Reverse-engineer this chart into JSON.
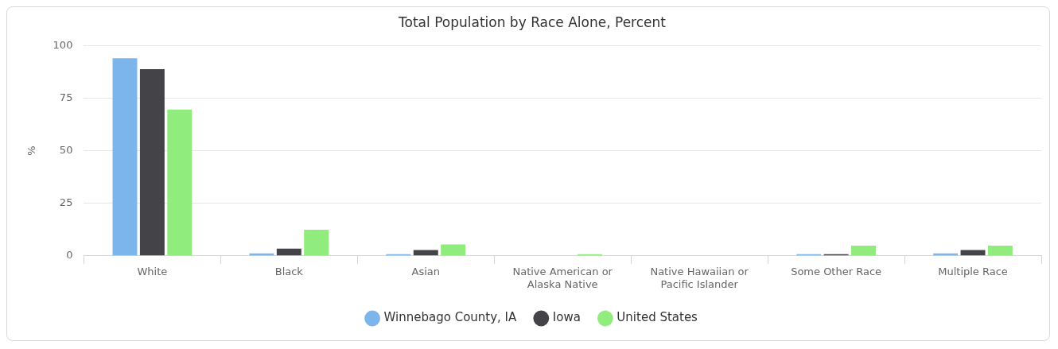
{
  "chart_data": {
    "type": "bar",
    "title": "Total Population by Race Alone, Percent",
    "ylabel": "%",
    "categories": [
      "White",
      "Black",
      "Asian",
      "Native American or Alaska Native",
      "Native Hawaiian or Pacific Islander",
      "Some Other Race",
      "Multiple Race"
    ],
    "series": [
      {
        "name": "Winnebago County, IA",
        "color": "#7cb5ec",
        "values": [
          94.0,
          1.2,
          0.8,
          null,
          null,
          0.8,
          1.2
        ]
      },
      {
        "name": "Iowa",
        "color": "#434348",
        "values": [
          88.8,
          3.4,
          2.8,
          null,
          null,
          0.8,
          2.8
        ]
      },
      {
        "name": "United States",
        "color": "#90ed7d",
        "values": [
          69.6,
          12.4,
          5.4,
          0.8,
          null,
          4.8,
          4.8
        ]
      }
    ],
    "ylim": [
      0,
      100
    ],
    "yticks": [
      0,
      25,
      50,
      75,
      100
    ],
    "grid": "y",
    "legend": "bottom"
  }
}
